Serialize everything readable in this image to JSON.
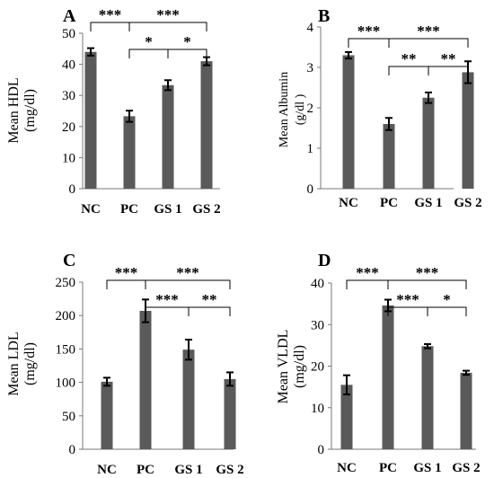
{
  "chart_data": [
    {
      "panel": "A",
      "type": "bar",
      "categories": [
        "NC",
        "PC",
        "GS 1",
        "GS 2"
      ],
      "values": [
        44,
        23.3,
        33.3,
        41
      ],
      "errors": [
        1.2,
        1.8,
        1.6,
        1.3
      ],
      "ylabel_lines": [
        "Mean HDL",
        "(mg/dl)"
      ],
      "ylim": [
        0,
        50
      ],
      "yticks": [
        "0",
        "10",
        "20",
        "30",
        "40",
        "50"
      ],
      "grid": false,
      "bar_color": "#5a5a5a",
      "significance": [
        {
          "from": 0,
          "to": 1,
          "label": "***"
        },
        {
          "from": 1,
          "to": 3,
          "label": "***"
        },
        {
          "from": 1,
          "to": 2,
          "label": "*"
        },
        {
          "from": 2,
          "to": 3,
          "label": "*"
        }
      ]
    },
    {
      "panel": "B",
      "type": "bar",
      "categories": [
        "NC",
        "PC",
        "GS 1",
        "GS 2"
      ],
      "values": [
        3.3,
        1.6,
        2.25,
        2.88
      ],
      "errors": [
        0.08,
        0.15,
        0.13,
        0.27
      ],
      "ylabel_lines": [
        "Mean Albumin",
        "(g/dl )"
      ],
      "ylim": [
        0,
        4
      ],
      "yticks": [
        "0",
        "1",
        "2",
        "3",
        "4"
      ],
      "grid": false,
      "bar_color": "#5a5a5a",
      "significance": [
        {
          "from": 0,
          "to": 1,
          "label": "***"
        },
        {
          "from": 1,
          "to": 3,
          "label": "***"
        },
        {
          "from": 1,
          "to": 2,
          "label": "**"
        },
        {
          "from": 2,
          "to": 3,
          "label": "**"
        }
      ]
    },
    {
      "panel": "C",
      "type": "bar",
      "categories": [
        "NC",
        "PC",
        "GS 1",
        "GS 2"
      ],
      "values": [
        101,
        207,
        149,
        105
      ],
      "errors": [
        6,
        17,
        15,
        10
      ],
      "ylabel_lines": [
        "Mean LDL",
        "(mg/dl)"
      ],
      "ylim": [
        0,
        250
      ],
      "yticks": [
        "0",
        "50",
        "100",
        "150",
        "200",
        "250"
      ],
      "grid": false,
      "bar_color": "#5a5a5a",
      "significance": [
        {
          "from": 0,
          "to": 1,
          "label": "***"
        },
        {
          "from": 1,
          "to": 3,
          "label": "***"
        },
        {
          "from": 1,
          "to": 2,
          "label": "***"
        },
        {
          "from": 2,
          "to": 3,
          "label": "**"
        }
      ]
    },
    {
      "panel": "D",
      "type": "bar",
      "categories": [
        "NC",
        "PC",
        "GS 1",
        "GS 2"
      ],
      "values": [
        15.5,
        34.6,
        24.8,
        18.4
      ],
      "errors": [
        2.3,
        1.4,
        0.5,
        0.5
      ],
      "ylabel_lines": [
        "Mean VLDL",
        "(mg/dl)"
      ],
      "ylim": [
        0,
        40
      ],
      "yticks": [
        "0",
        "10",
        "20",
        "30",
        "40"
      ],
      "grid": false,
      "bar_color": "#5a5a5a",
      "significance": [
        {
          "from": 0,
          "to": 1,
          "label": "***"
        },
        {
          "from": 1,
          "to": 3,
          "label": "***"
        },
        {
          "from": 1,
          "to": 2,
          "label": "***"
        },
        {
          "from": 2,
          "to": 3,
          "label": "*"
        }
      ]
    }
  ]
}
